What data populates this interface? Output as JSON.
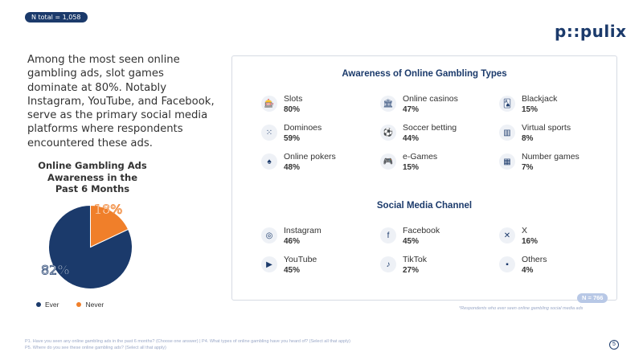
{
  "header": {
    "n_total": "N total = 1,058",
    "logo": "p::pulix"
  },
  "summary": "Among the most seen online gambling ads, slot games dominate at 80%. Notably Instagram, YouTube, and Facebook, serve as the primary social media platforms where respondents encountered these ads.",
  "pie_title": "Online Gambling Ads Awareness in the Past 6 Months",
  "colors": {
    "ever": "#1b3a6b",
    "never": "#f07f2a",
    "accent": "#1b3a6b"
  },
  "chart_data": {
    "type": "pie",
    "title": "Online Gambling Ads Awareness in the Past 6 Months",
    "categories": [
      "Ever",
      "Never"
    ],
    "values": [
      82,
      18
    ],
    "labels": [
      "82%",
      "18%"
    ],
    "legend": "bottom"
  },
  "card": {
    "awareness_title": "Awareness of Online Gambling Types",
    "awareness": [
      {
        "icon": "slot-machine-icon",
        "glyph": "🎰",
        "label": "Slots",
        "value": "80%"
      },
      {
        "icon": "casino-icon",
        "glyph": "🏛",
        "label": "Online casinos",
        "value": "47%"
      },
      {
        "icon": "blackjack-icon",
        "glyph": "🂡",
        "label": "Blackjack",
        "value": "15%"
      },
      {
        "icon": "dominoes-icon",
        "glyph": "⁙",
        "label": "Dominoes",
        "value": "59%"
      },
      {
        "icon": "soccer-icon",
        "glyph": "⚽",
        "label": "Soccer betting",
        "value": "44%"
      },
      {
        "icon": "virtual-sports-icon",
        "glyph": "▥",
        "label": "Virtual sports",
        "value": "8%"
      },
      {
        "icon": "poker-icon",
        "glyph": "♠",
        "label": "Online pokers",
        "value": "48%"
      },
      {
        "icon": "gamepad-icon",
        "glyph": "🎮",
        "label": "e-Games",
        "value": "15%"
      },
      {
        "icon": "number-games-icon",
        "glyph": "▦",
        "label": "Number games",
        "value": "7%"
      }
    ],
    "social_title": "Social Media Channel",
    "social": [
      {
        "icon": "instagram-icon",
        "glyph": "◎",
        "label": "Instagram",
        "value": "46%"
      },
      {
        "icon": "facebook-icon",
        "glyph": "f",
        "label": "Facebook",
        "value": "45%"
      },
      {
        "icon": "x-icon",
        "glyph": "✕",
        "label": "X",
        "value": "16%"
      },
      {
        "icon": "youtube-icon",
        "glyph": "▶",
        "label": "YouTube",
        "value": "45%"
      },
      {
        "icon": "tiktok-icon",
        "glyph": "♪",
        "label": "TikTok",
        "value": "27%"
      },
      {
        "icon": "chat-icon",
        "glyph": "▪",
        "label": "Others",
        "value": "4%"
      }
    ],
    "n_badge": "N = 766",
    "footnote": "*Respondents who ever seen online gambling social media ads"
  },
  "footer": {
    "line1": "P1. Have you seen any online gambling ads in the past 6 months? (Choose one answer) | P4. What types of online gambling have you heard of? (Select all that apply)",
    "line2": "P5. Where do you see these online gambling ads? (Select all that apply)"
  },
  "page_number": "5"
}
